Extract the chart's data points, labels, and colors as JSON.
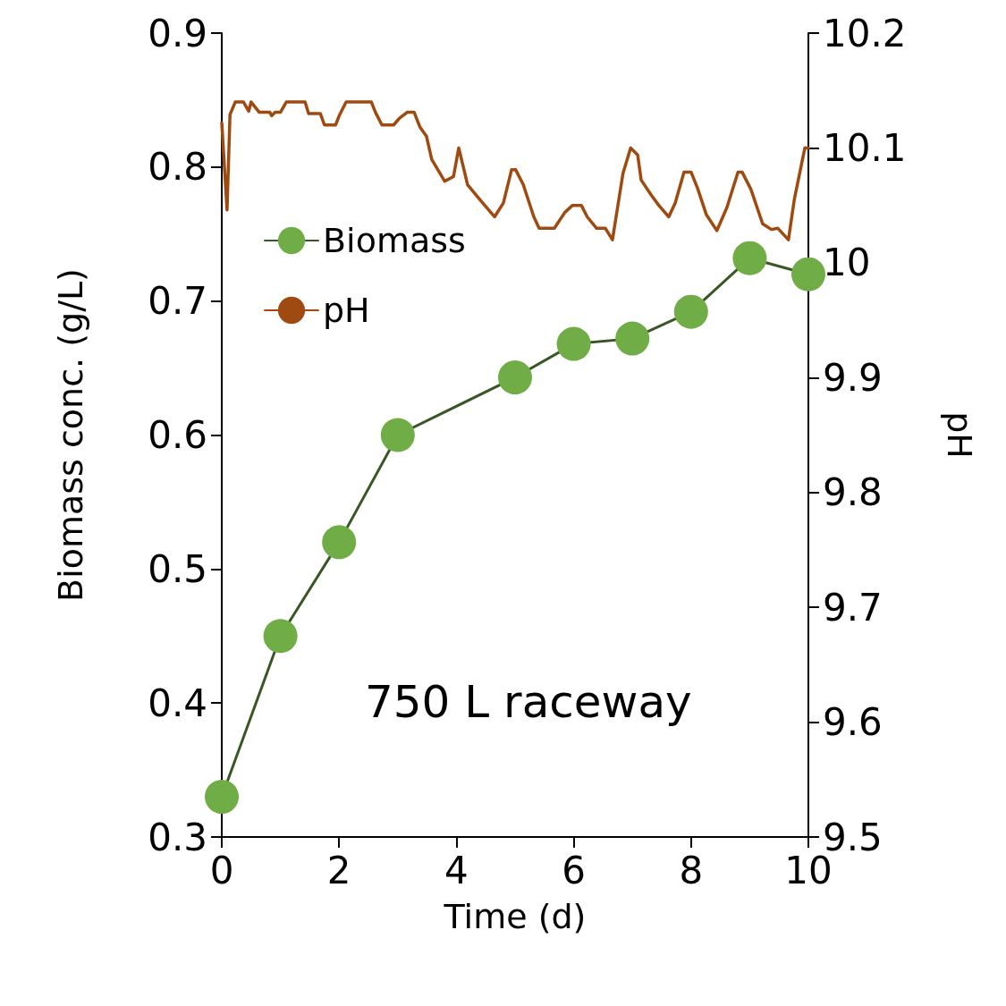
{
  "chart_data": {
    "type": "line",
    "xlabel": "Time (d)",
    "ylabel": "Biomass conc. (g/L)",
    "y2label": "pH",
    "annotations": [
      "750 L raceway"
    ],
    "xlim": [
      0,
      10
    ],
    "xticks": [
      0,
      2,
      4,
      6,
      8,
      10
    ],
    "ylim": [
      0.3,
      0.9
    ],
    "yticks": [
      0.3,
      0.4,
      0.5,
      0.6,
      0.7,
      0.8,
      0.9
    ],
    "y2lim": [
      9.5,
      10.2
    ],
    "y2ticks": [
      9.5,
      9.6,
      9.7,
      9.8,
      9.9,
      10,
      10.1,
      10.2
    ],
    "grid": false,
    "legend": "top left",
    "series": [
      {
        "name": "Biomass",
        "color": "#70ad47",
        "marker": "circle",
        "x": [
          0,
          1,
          2,
          3,
          5,
          6,
          7,
          8,
          9,
          10
        ],
        "values": [
          0.33,
          0.45,
          0.52,
          0.6,
          0.643,
          0.668,
          0.672,
          0.692,
          0.732,
          0.72
        ]
      },
      {
        "name": "pH",
        "color": "#9e4a10",
        "marker": "none",
        "axis": "y2",
        "x": [
          0,
          0.09,
          0.14,
          0.23,
          0.37,
          0.46,
          0.5,
          0.64,
          0.82,
          0.85,
          0.91,
          1.0,
          1.1,
          1.42,
          1.48,
          1.68,
          1.75,
          1.94,
          2.01,
          2.12,
          2.55,
          2.62,
          2.73,
          2.93,
          3.03,
          3.16,
          3.28,
          3.38,
          3.49,
          3.58,
          3.8,
          3.95,
          4.04,
          4.19,
          4.45,
          4.65,
          4.8,
          4.94,
          5.01,
          5.14,
          5.32,
          5.41,
          5.67,
          5.85,
          5.98,
          6.13,
          6.23,
          6.39,
          6.54,
          6.66,
          6.84,
          6.97,
          7.09,
          7.15,
          7.32,
          7.45,
          7.62,
          7.73,
          7.88,
          8.0,
          8.11,
          8.26,
          8.44,
          8.61,
          8.8,
          8.87,
          9.02,
          9.22,
          9.37,
          9.48,
          9.66,
          9.76,
          9.94,
          10
        ],
        "values": [
          10.122,
          10.046,
          10.129,
          10.14,
          10.14,
          10.132,
          10.14,
          10.131,
          10.131,
          10.128,
          10.131,
          10.131,
          10.14,
          10.14,
          10.13,
          10.13,
          10.12,
          10.12,
          10.129,
          10.14,
          10.14,
          10.131,
          10.12,
          10.12,
          10.126,
          10.131,
          10.131,
          10.118,
          10.11,
          10.09,
          10.071,
          10.075,
          10.1,
          10.068,
          10.052,
          10.04,
          10.052,
          10.081,
          10.081,
          10.068,
          10.04,
          10.03,
          10.03,
          10.044,
          10.05,
          10.05,
          10.04,
          10.03,
          10.03,
          10.02,
          10.078,
          10.1,
          10.094,
          10.072,
          10.059,
          10.05,
          10.04,
          10.052,
          10.079,
          10.079,
          10.065,
          10.042,
          10.028,
          10.048,
          10.079,
          10.079,
          10.064,
          10.034,
          10.029,
          10.03,
          10.02,
          10.055,
          10.1,
          10.1
        ]
      }
    ]
  }
}
